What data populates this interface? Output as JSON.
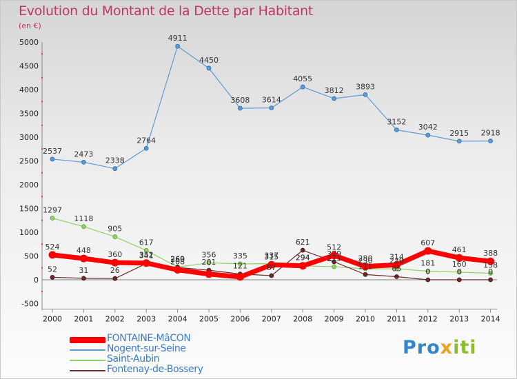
{
  "header": {
    "title": "Evolution du Montant de la Dette par Habitant",
    "unit": "(en €)"
  },
  "brand": {
    "part1": "Pro",
    "part2": "x",
    "part3": "iti"
  },
  "chart_data": {
    "type": "line",
    "title": "Evolution du Montant de la Dette par Habitant",
    "subtitle": "(en €)",
    "xlabel": "",
    "ylabel": "",
    "ylim": [
      -500,
      5000
    ],
    "yticks": [
      -500,
      0,
      500,
      1000,
      1500,
      2000,
      2500,
      3000,
      3500,
      4000,
      4500,
      5000
    ],
    "grid": false,
    "legend_position": "bottom-left",
    "x": [
      "2000",
      "2001",
      "2002",
      "2003",
      "2004",
      "2005",
      "2006",
      "2007",
      "2008",
      "2009",
      "2010",
      "2011",
      "2012",
      "2013",
      "2014"
    ],
    "series": [
      {
        "name": "FONTAINE-MâCON",
        "color": "#ff0000",
        "values": [
          524,
          448,
          360,
          352,
          208,
          120,
          60,
          315,
          294,
          512,
          280,
          314,
          607,
          461,
          388
        ],
        "labels": [
          "524",
          "448",
          "360",
          "352",
          "208",
          "",
          "",
          "315",
          "294",
          "512",
          "280",
          "314",
          "607",
          "461",
          "388"
        ]
      },
      {
        "name": "Nogent-sur-Seine",
        "color": "#5b9bd5",
        "values": [
          2537,
          2473,
          2338,
          2764,
          4911,
          4450,
          3608,
          3614,
          4055,
          3812,
          3893,
          3152,
          3042,
          2915,
          2918
        ],
        "labels": [
          "2537",
          "2473",
          "2338",
          "2764",
          "4911",
          "4450",
          "3608",
          "3614",
          "4055",
          "3812",
          "3893",
          "3152",
          "3042",
          "2915",
          "2918"
        ]
      },
      {
        "name": "Saint-Aubin",
        "color": "#90d068",
        "values": [
          1297,
          1118,
          905,
          617,
          269,
          356,
          335,
          337,
          294,
          275,
          230,
          230,
          181,
          160,
          138
        ],
        "labels": [
          "1297",
          "1118",
          "905",
          "617",
          "269",
          "356",
          "335",
          "337",
          "294",
          "275",
          "230",
          "230",
          "181",
          "160",
          "138"
        ]
      },
      {
        "name": "Fontenay-de-Bossery",
        "color": "#6b2b2b",
        "values": [
          52,
          31,
          26,
          341,
          260,
          201,
          121,
          87,
          621,
          379,
          111,
          65,
          0,
          0,
          0
        ],
        "labels": [
          "52",
          "31",
          "26",
          "341",
          "260",
          "201",
          "121",
          "87",
          "621",
          "379",
          "111",
          "65",
          "0",
          "0",
          "0"
        ]
      }
    ]
  }
}
